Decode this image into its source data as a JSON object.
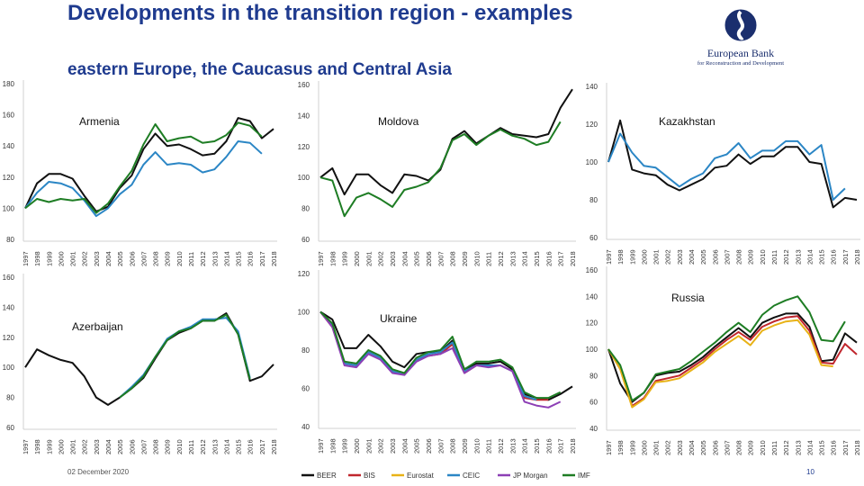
{
  "header": {
    "title": "Developments in the transition region - examples",
    "subtitle": "eastern Europe, the Caucasus and Central Asia"
  },
  "logo": {
    "name": "European Bank",
    "subname": "for Reconstruction and Development"
  },
  "footer": {
    "date": "02 December 2020",
    "page": "10"
  },
  "legend": [
    {
      "name": "BEER",
      "color": "#111111"
    },
    {
      "name": "BIS",
      "color": "#c0262d"
    },
    {
      "name": "Eurostat",
      "color": "#e8b217"
    },
    {
      "name": "CEIC",
      "color": "#2b86c5"
    },
    {
      "name": "JP Morgan",
      "color": "#8d3fb5"
    },
    {
      "name": "IMF",
      "color": "#1e7d24"
    }
  ],
  "chart_data": [
    {
      "type": "line",
      "title": "Armenia",
      "x": [
        "1997",
        "1998",
        "1999",
        "2000",
        "2001",
        "2002",
        "2003",
        "2004",
        "2005",
        "2006",
        "2007",
        "2008",
        "2009",
        "2010",
        "2011",
        "2012",
        "2013",
        "2014",
        "2015",
        "2016",
        "2017",
        "2018"
      ],
      "ylim": [
        80,
        180
      ],
      "yticks": [
        80,
        100,
        120,
        140,
        160,
        180
      ],
      "series": [
        {
          "name": "BEER",
          "color": "#111111",
          "values": [
            100,
            116,
            122,
            122,
            119,
            108,
            98,
            101,
            113,
            121,
            138,
            148,
            140,
            141,
            138,
            134,
            135,
            143,
            158,
            156,
            145,
            151
          ]
        },
        {
          "name": "CEIC",
          "color": "#2b86c5",
          "values": [
            100,
            110,
            117,
            116,
            113,
            105,
            95,
            100,
            109,
            115,
            128,
            136,
            128,
            129,
            128,
            123,
            125,
            133,
            143,
            142,
            135,
            null
          ]
        },
        {
          "name": "IMF",
          "color": "#1e7d24",
          "values": [
            100,
            106,
            104,
            106,
            105,
            106,
            97,
            103,
            114,
            124,
            141,
            154,
            143,
            145,
            146,
            142,
            143,
            147,
            155,
            153,
            146,
            null
          ]
        }
      ]
    },
    {
      "type": "line",
      "title": "Moldova",
      "x": [
        "1997",
        "1998",
        "1999",
        "2000",
        "2001",
        "2002",
        "2003",
        "2004",
        "2005",
        "2006",
        "2007",
        "2008",
        "2009",
        "2010",
        "2011",
        "2012",
        "2013",
        "2014",
        "2015",
        "2016",
        "2017",
        "2018"
      ],
      "ylim": [
        60,
        160
      ],
      "yticks": [
        60,
        80,
        100,
        120,
        140,
        160
      ],
      "series": [
        {
          "name": "BEER",
          "color": "#111111",
          "values": [
            100,
            106,
            89,
            102,
            102,
            95,
            90,
            102,
            101,
            98,
            105,
            125,
            130,
            122,
            127,
            132,
            128,
            127,
            126,
            128,
            145,
            157
          ]
        },
        {
          "name": "IMF",
          "color": "#1e7d24",
          "values": [
            100,
            98,
            75,
            87,
            90,
            86,
            81,
            92,
            94,
            97,
            106,
            124,
            128,
            121,
            127,
            131,
            127,
            125,
            121,
            123,
            136,
            null
          ]
        }
      ]
    },
    {
      "type": "line",
      "title": "Kazakhstan",
      "x": [
        "1997",
        "1998",
        "1999",
        "2000",
        "2001",
        "2002",
        "2003",
        "2004",
        "2005",
        "2006",
        "2007",
        "2008",
        "2009",
        "2010",
        "2011",
        "2012",
        "2013",
        "2014",
        "2015",
        "2016",
        "2017",
        "2018"
      ],
      "ylim": [
        60,
        140
      ],
      "yticks": [
        60,
        80,
        100,
        120,
        140
      ],
      "series": [
        {
          "name": "BEER",
          "color": "#111111",
          "values": [
            100,
            122,
            96,
            94,
            93,
            88,
            85,
            88,
            91,
            97,
            98,
            104,
            99,
            103,
            103,
            108,
            108,
            100,
            99,
            76,
            81,
            80
          ]
        },
        {
          "name": "CEIC",
          "color": "#2b86c5",
          "values": [
            100,
            115,
            105,
            98,
            97,
            92,
            87,
            91,
            94,
            102,
            104,
            110,
            102,
            106,
            106,
            111,
            111,
            104,
            109,
            80,
            86,
            null
          ]
        }
      ]
    },
    {
      "type": "line",
      "title": "Azerbaijan",
      "x": [
        "1997",
        "1998",
        "1999",
        "2000",
        "2001",
        "2002",
        "2003",
        "2004",
        "2005",
        "2006",
        "2007",
        "2008",
        "2009",
        "2010",
        "2011",
        "2012",
        "2013",
        "2014",
        "2015",
        "2016",
        "2017",
        "2018"
      ],
      "ylim": [
        60,
        160
      ],
      "yticks": [
        60,
        80,
        100,
        120,
        140,
        160
      ],
      "series": [
        {
          "name": "BEER",
          "color": "#111111",
          "values": [
            100,
            112,
            108,
            105,
            103,
            94,
            80,
            75,
            80,
            86,
            93,
            106,
            118,
            123,
            126,
            131,
            131,
            136,
            122,
            91,
            94,
            102
          ]
        },
        {
          "name": "CEIC",
          "color": "#2b86c5",
          "values": [
            null,
            null,
            null,
            null,
            null,
            null,
            null,
            null,
            80,
            87,
            95,
            107,
            119,
            124,
            127,
            132,
            132,
            133,
            124,
            93,
            null,
            null
          ]
        },
        {
          "name": "IMF",
          "color": "#1e7d24",
          "values": [
            null,
            null,
            null,
            null,
            null,
            null,
            null,
            null,
            80,
            86,
            94,
            107,
            118,
            124,
            126,
            131,
            131,
            135,
            122,
            92,
            null,
            null
          ]
        }
      ]
    },
    {
      "type": "line",
      "title": "Ukraine",
      "x": [
        "1997",
        "1998",
        "1999",
        "2000",
        "2001",
        "2002",
        "2003",
        "2004",
        "2005",
        "2006",
        "2007",
        "2008",
        "2009",
        "2010",
        "2011",
        "2012",
        "2013",
        "2014",
        "2015",
        "2016",
        "2017",
        "2018"
      ],
      "ylim": [
        40,
        120
      ],
      "yticks": [
        40,
        60,
        80,
        100,
        120
      ],
      "series": [
        {
          "name": "BEER",
          "color": "#111111",
          "values": [
            100,
            96,
            81,
            81,
            88,
            82,
            74,
            71,
            78,
            79,
            79,
            85,
            70,
            73,
            73,
            74,
            70,
            57,
            55,
            54,
            57,
            61
          ]
        },
        {
          "name": "BIS",
          "color": "#c0262d",
          "values": [
            100,
            92,
            73,
            72,
            79,
            76,
            69,
            67,
            75,
            77,
            78,
            83,
            68,
            72,
            72,
            72,
            69,
            55,
            54,
            54,
            null,
            null
          ]
        },
        {
          "name": "CEIC",
          "color": "#2b86c5",
          "values": [
            100,
            93,
            73,
            72,
            79,
            76,
            69,
            67,
            75,
            78,
            79,
            84,
            69,
            72,
            72,
            72,
            69,
            56,
            54,
            null,
            null,
            null
          ]
        },
        {
          "name": "JP Morgan",
          "color": "#8d3fb5",
          "values": [
            100,
            92,
            72,
            71,
            78,
            75,
            68,
            67,
            74,
            77,
            78,
            81,
            68,
            72,
            71,
            72,
            69,
            53,
            51,
            50,
            53,
            null
          ]
        },
        {
          "name": "IMF",
          "color": "#1e7d24",
          "values": [
            100,
            94,
            74,
            73,
            80,
            77,
            70,
            68,
            76,
            79,
            80,
            87,
            70,
            74,
            74,
            75,
            71,
            58,
            55,
            55,
            58,
            null
          ]
        }
      ]
    },
    {
      "type": "line",
      "title": "Russia",
      "x": [
        "1997",
        "1998",
        "1999",
        "2000",
        "2001",
        "2002",
        "2003",
        "2004",
        "2005",
        "2006",
        "2007",
        "2008",
        "2009",
        "2010",
        "2011",
        "2012",
        "2013",
        "2014",
        "2015",
        "2016",
        "2017",
        "2018"
      ],
      "ylim": [
        40,
        160
      ],
      "yticks": [
        40,
        60,
        80,
        100,
        120,
        140,
        160
      ],
      "series": [
        {
          "name": "BEER",
          "color": "#111111",
          "values": [
            100,
            74,
            60,
            67,
            80,
            82,
            83,
            88,
            94,
            102,
            109,
            116,
            109,
            120,
            124,
            127,
            127,
            117,
            91,
            92,
            112,
            105
          ]
        },
        {
          "name": "BIS",
          "color": "#c0262d",
          "values": [
            100,
            85,
            57,
            63,
            76,
            78,
            80,
            86,
            92,
            100,
            107,
            113,
            107,
            117,
            121,
            124,
            125,
            114,
            90,
            89,
            104,
            96
          ]
        },
        {
          "name": "Eurostat",
          "color": "#e8b217",
          "values": [
            100,
            85,
            56,
            62,
            75,
            76,
            78,
            84,
            90,
            98,
            104,
            110,
            103,
            114,
            118,
            121,
            122,
            111,
            88,
            87,
            null,
            null
          ]
        },
        {
          "name": "IMF",
          "color": "#1e7d24",
          "values": [
            100,
            88,
            61,
            67,
            81,
            83,
            85,
            91,
            98,
            105,
            113,
            120,
            113,
            126,
            133,
            137,
            140,
            128,
            107,
            106,
            121,
            null
          ]
        }
      ]
    }
  ]
}
